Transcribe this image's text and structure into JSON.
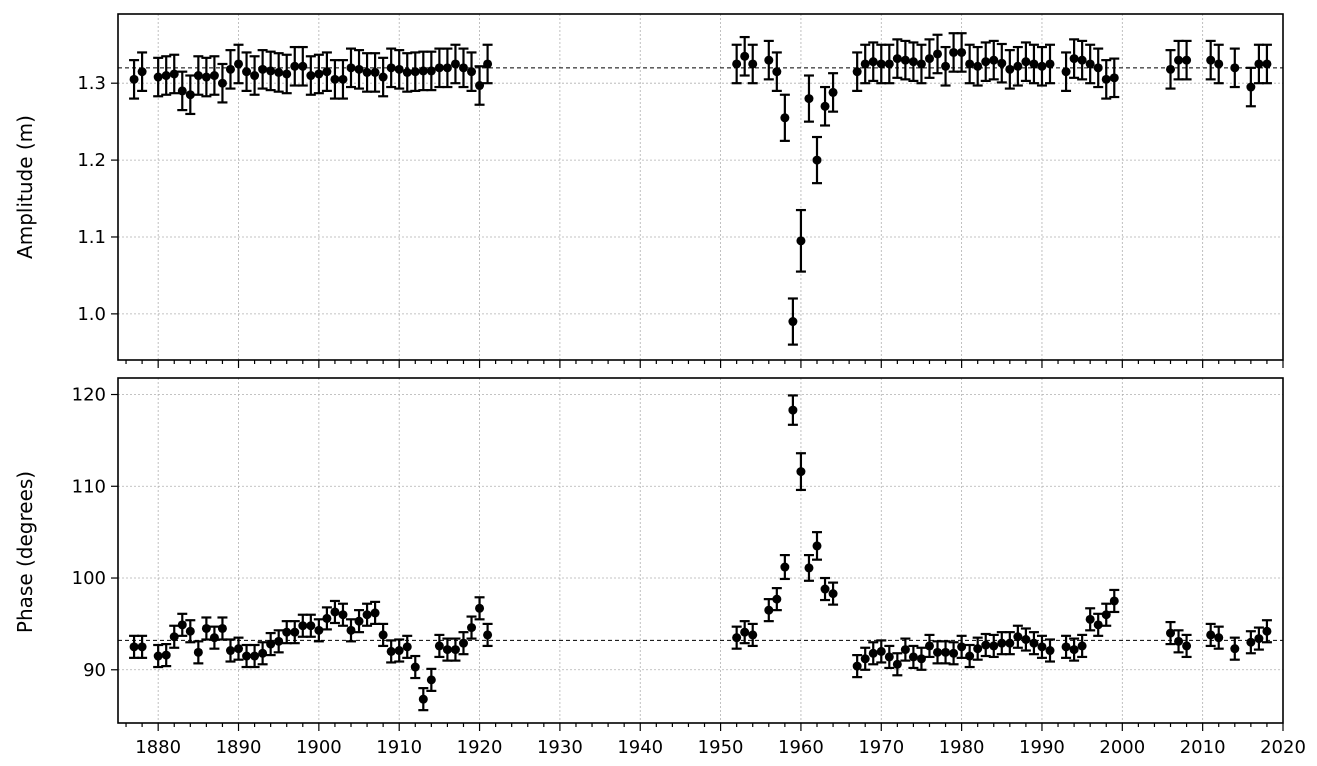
{
  "chart_data": [
    {
      "type": "scatter",
      "panel": "top",
      "ylabel": "Amplitude (m)",
      "xlim": [
        1875,
        2020
      ],
      "ylim": [
        0.94,
        1.39
      ],
      "yticks": [
        1.0,
        1.1,
        1.2,
        1.3
      ],
      "ytick_labels": [
        "1.0",
        "1.1",
        "1.2",
        "1.3"
      ],
      "xticks": [
        1880,
        1890,
        1900,
        1910,
        1920,
        1930,
        1940,
        1950,
        1960,
        1970,
        1980,
        1990,
        2000,
        2010,
        2020
      ],
      "xtick_labels": [],
      "reference_line": 1.32,
      "grid": true,
      "x": [
        1877,
        1878,
        1880,
        1881,
        1882,
        1883,
        1884,
        1885,
        1886,
        1887,
        1888,
        1889,
        1890,
        1891,
        1892,
        1893,
        1894,
        1895,
        1896,
        1897,
        1898,
        1899,
        1900,
        1901,
        1902,
        1903,
        1904,
        1905,
        1906,
        1907,
        1908,
        1909,
        1910,
        1911,
        1912,
        1913,
        1914,
        1915,
        1916,
        1917,
        1918,
        1919,
        1920,
        1921,
        1952,
        1953,
        1954,
        1956,
        1957,
        1958,
        1959,
        1960,
        1961,
        1962,
        1963,
        1964,
        1967,
        1968,
        1969,
        1970,
        1971,
        1972,
        1973,
        1974,
        1975,
        1976,
        1977,
        1978,
        1979,
        1980,
        1981,
        1982,
        1983,
        1984,
        1985,
        1986,
        1987,
        1988,
        1989,
        1990,
        1991,
        1993,
        1994,
        1995,
        1996,
        1997,
        1998,
        1999,
        2006,
        2007,
        2008,
        2011,
        2012,
        2014,
        2016,
        2017,
        2018
      ],
      "y": [
        1.305,
        1.315,
        1.308,
        1.31,
        1.312,
        1.29,
        1.285,
        1.31,
        1.308,
        1.31,
        1.3,
        1.318,
        1.325,
        1.315,
        1.31,
        1.318,
        1.316,
        1.314,
        1.312,
        1.322,
        1.322,
        1.31,
        1.312,
        1.315,
        1.305,
        1.305,
        1.32,
        1.318,
        1.314,
        1.314,
        1.308,
        1.32,
        1.318,
        1.314,
        1.315,
        1.316,
        1.316,
        1.32,
        1.32,
        1.325,
        1.32,
        1.315,
        1.297,
        1.325,
        1.325,
        1.335,
        1.325,
        1.33,
        1.315,
        1.255,
        0.99,
        1.095,
        1.28,
        1.2,
        1.27,
        1.288,
        1.315,
        1.325,
        1.328,
        1.325,
        1.325,
        1.332,
        1.33,
        1.328,
        1.325,
        1.332,
        1.338,
        1.322,
        1.34,
        1.34,
        1.325,
        1.322,
        1.328,
        1.33,
        1.326,
        1.318,
        1.322,
        1.328,
        1.325,
        1.322,
        1.325,
        1.315,
        1.332,
        1.33,
        1.325,
        1.32,
        1.305,
        1.307,
        1.318,
        1.33,
        1.33,
        1.33,
        1.325,
        1.32,
        1.295,
        1.325,
        1.325
      ],
      "yerr": [
        0.025,
        0.025,
        0.025,
        0.025,
        0.025,
        0.025,
        0.025,
        0.025,
        0.025,
        0.025,
        0.025,
        0.025,
        0.025,
        0.025,
        0.025,
        0.025,
        0.025,
        0.025,
        0.025,
        0.025,
        0.025,
        0.025,
        0.025,
        0.025,
        0.025,
        0.025,
        0.025,
        0.025,
        0.025,
        0.025,
        0.025,
        0.025,
        0.025,
        0.025,
        0.025,
        0.025,
        0.025,
        0.025,
        0.025,
        0.025,
        0.025,
        0.025,
        0.025,
        0.025,
        0.025,
        0.025,
        0.025,
        0.025,
        0.025,
        0.03,
        0.03,
        0.04,
        0.03,
        0.03,
        0.025,
        0.025,
        0.025,
        0.025,
        0.025,
        0.025,
        0.025,
        0.025,
        0.025,
        0.025,
        0.025,
        0.025,
        0.025,
        0.025,
        0.025,
        0.025,
        0.025,
        0.025,
        0.025,
        0.025,
        0.025,
        0.025,
        0.025,
        0.025,
        0.025,
        0.025,
        0.025,
        0.025,
        0.025,
        0.025,
        0.025,
        0.025,
        0.025,
        0.025,
        0.025,
        0.025,
        0.025,
        0.025,
        0.025,
        0.025,
        0.025,
        0.025,
        0.025
      ]
    },
    {
      "type": "scatter",
      "panel": "bottom",
      "ylabel": "Phase (degrees)",
      "xlim": [
        1875,
        2020
      ],
      "ylim": [
        84.2,
        121.8
      ],
      "yticks": [
        90,
        100,
        110,
        120
      ],
      "ytick_labels": [
        "90",
        "100",
        "110",
        "120"
      ],
      "xticks": [
        1880,
        1890,
        1900,
        1910,
        1920,
        1930,
        1940,
        1950,
        1960,
        1970,
        1980,
        1990,
        2000,
        2010,
        2020
      ],
      "xtick_labels": [
        "1880",
        "1890",
        "1900",
        "1910",
        "1920",
        "1930",
        "1940",
        "1950",
        "1960",
        "1970",
        "1980",
        "1990",
        "2000",
        "2010",
        "2020"
      ],
      "reference_line": 93.2,
      "grid": true,
      "x": [
        1877,
        1878,
        1880,
        1881,
        1882,
        1883,
        1884,
        1885,
        1886,
        1887,
        1888,
        1889,
        1890,
        1891,
        1892,
        1893,
        1894,
        1895,
        1896,
        1897,
        1898,
        1899,
        1900,
        1901,
        1902,
        1903,
        1904,
        1905,
        1906,
        1907,
        1908,
        1909,
        1910,
        1911,
        1912,
        1913,
        1914,
        1915,
        1916,
        1917,
        1918,
        1919,
        1920,
        1921,
        1952,
        1953,
        1954,
        1956,
        1957,
        1958,
        1959,
        1960,
        1961,
        1962,
        1963,
        1964,
        1967,
        1968,
        1969,
        1970,
        1971,
        1972,
        1973,
        1974,
        1975,
        1976,
        1977,
        1978,
        1979,
        1980,
        1981,
        1982,
        1983,
        1984,
        1985,
        1986,
        1987,
        1988,
        1989,
        1990,
        1991,
        1993,
        1994,
        1995,
        1996,
        1997,
        1998,
        1999,
        2006,
        2007,
        2008,
        2011,
        2012,
        2014,
        2016,
        2017,
        2018
      ],
      "y": [
        92.5,
        92.5,
        91.5,
        91.6,
        93.6,
        94.9,
        94.2,
        91.9,
        94.5,
        93.5,
        94.5,
        92.1,
        92.3,
        91.5,
        91.5,
        91.8,
        92.8,
        93.1,
        94.1,
        94.1,
        94.8,
        94.8,
        94.3,
        95.6,
        96.3,
        96.0,
        94.3,
        95.3,
        96.0,
        96.2,
        93.8,
        92.0,
        92.1,
        92.5,
        90.3,
        86.8,
        88.9,
        92.6,
        92.2,
        92.2,
        92.9,
        94.6,
        96.7,
        93.8,
        93.5,
        94.1,
        93.8,
        96.5,
        97.7,
        101.2,
        118.3,
        111.6,
        101.1,
        103.5,
        98.8,
        98.3,
        90.4,
        91.2,
        91.8,
        92.0,
        91.4,
        90.6,
        92.2,
        91.4,
        91.2,
        92.6,
        91.9,
        91.9,
        91.8,
        92.5,
        91.5,
        92.3,
        92.7,
        92.6,
        92.9,
        92.9,
        93.6,
        93.3,
        92.9,
        92.5,
        92.1,
        92.5,
        92.2,
        92.6,
        95.5,
        94.9,
        96.0,
        97.5,
        94.0,
        93.1,
        92.6,
        93.8,
        93.5,
        92.3,
        93.0,
        93.4,
        94.2
      ],
      "yerr": [
        1.2,
        1.2,
        1.2,
        1.2,
        1.2,
        1.2,
        1.2,
        1.2,
        1.2,
        1.2,
        1.2,
        1.2,
        1.2,
        1.2,
        1.2,
        1.2,
        1.2,
        1.2,
        1.2,
        1.2,
        1.2,
        1.2,
        1.2,
        1.2,
        1.2,
        1.2,
        1.2,
        1.2,
        1.2,
        1.2,
        1.2,
        1.2,
        1.2,
        1.2,
        1.2,
        1.2,
        1.2,
        1.2,
        1.2,
        1.2,
        1.2,
        1.2,
        1.2,
        1.2,
        1.2,
        1.2,
        1.2,
        1.2,
        1.2,
        1.3,
        1.6,
        2.0,
        1.4,
        1.5,
        1.2,
        1.2,
        1.2,
        1.2,
        1.2,
        1.2,
        1.2,
        1.2,
        1.2,
        1.2,
        1.2,
        1.2,
        1.2,
        1.2,
        1.2,
        1.2,
        1.2,
        1.2,
        1.2,
        1.2,
        1.2,
        1.2,
        1.2,
        1.2,
        1.2,
        1.2,
        1.2,
        1.2,
        1.2,
        1.2,
        1.2,
        1.2,
        1.2,
        1.2,
        1.2,
        1.2,
        1.2,
        1.2,
        1.2,
        1.2,
        1.2,
        1.2,
        1.2
      ]
    }
  ]
}
